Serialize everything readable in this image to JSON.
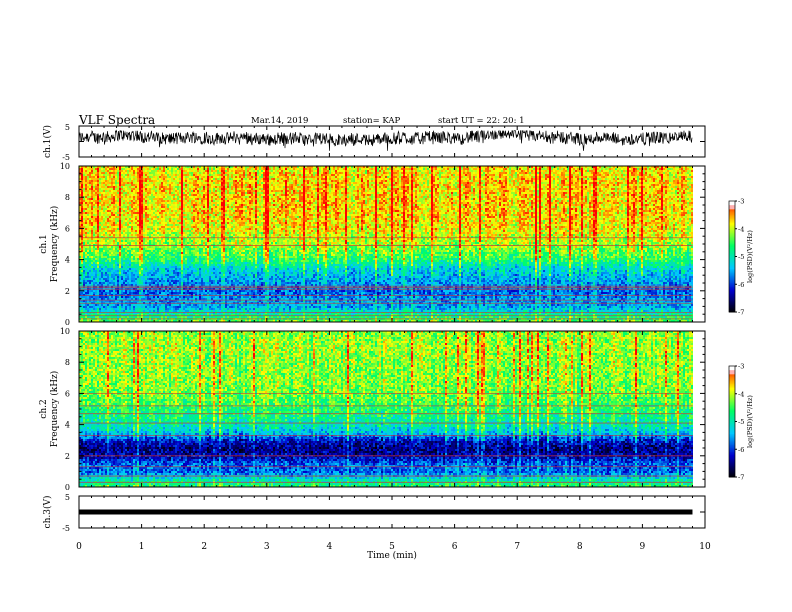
{
  "header": {
    "title": "VLF Spectra",
    "date": "Mar.14, 2019",
    "station": "station= KAP",
    "start": "start  UT =   22: 20: 1"
  },
  "colors": {
    "background": "#ffffff",
    "axis": "#000000",
    "colormap": [
      "#000000",
      "#0000cc",
      "#00c8ff",
      "#00ff64",
      "#ffff00",
      "#ff0000",
      "#ffffff"
    ]
  },
  "chart_data": [
    {
      "type": "line",
      "panel": "ch1-waveform",
      "ylabel": "ch.1(V)",
      "ylim": [
        -5,
        5
      ],
      "yticks": [
        "5",
        "-5"
      ],
      "xlim": [
        0,
        9.8
      ],
      "baseline": 1.0,
      "amplitude": 2.0,
      "noise_floor": -1.5
    },
    {
      "type": "heatmap",
      "panel": "ch1-spectrogram",
      "ylabel_channel": "ch.1",
      "ylabel": "Frequency (kHz)",
      "ylim": [
        0,
        10
      ],
      "yticks": [
        "0",
        "2",
        "4",
        "6",
        "8",
        "10"
      ],
      "xlim": [
        0,
        9.8
      ],
      "colorbar_label": "log(PSD)(V²/Hz)",
      "colorbar_ticks": [
        "-3",
        "-4",
        "-5",
        "-6",
        "-7"
      ],
      "clim": [
        -7,
        -3
      ],
      "profile_khz": [
        0,
        0.5,
        1,
        1.5,
        2,
        2.5,
        3,
        3.5,
        4,
        5,
        6,
        7,
        8,
        9,
        10
      ],
      "profile_log_psd": [
        -4.2,
        -4.8,
        -5.5,
        -5.6,
        -5.8,
        -5.6,
        -5.4,
        -5.2,
        -4.6,
        -4.1,
        -3.8,
        -3.7,
        -3.7,
        -3.7,
        -3.8
      ],
      "tones_khz": [
        0.2,
        0.4,
        0.6,
        1.2,
        1.4,
        1.7,
        2.1,
        2.2,
        2.3,
        4.9,
        5.4
      ],
      "tone_color": "#cc3333"
    },
    {
      "type": "heatmap",
      "panel": "ch2-spectrogram",
      "ylabel_channel": "ch.2",
      "ylabel": "Frequency (kHz)",
      "ylim": [
        0,
        10
      ],
      "yticks": [
        "0",
        "2",
        "4",
        "6",
        "8",
        "10"
      ],
      "xlim": [
        0,
        9.8
      ],
      "colorbar_label": "log(PSD)(V²/Hz)",
      "colorbar_ticks": [
        "-3",
        "-4",
        "-5",
        "-6",
        "-7"
      ],
      "clim": [
        -7,
        -3
      ],
      "profile_khz": [
        0,
        0.5,
        1,
        1.5,
        2,
        2.5,
        3,
        3.5,
        4,
        5,
        6,
        7,
        8,
        9,
        10
      ],
      "profile_log_psd": [
        -4.5,
        -5.0,
        -5.8,
        -5.8,
        -6.3,
        -6.5,
        -6.2,
        -5.4,
        -5.0,
        -4.6,
        -4.3,
        -4.2,
        -4.2,
        -4.1,
        -4.2
      ],
      "tones_khz": [
        0.3,
        0.7,
        1.3,
        2.0,
        3.3,
        4.1,
        4.7,
        5.2,
        6.0
      ],
      "tone_color": "#cc3333"
    },
    {
      "type": "line",
      "panel": "ch3-waveform",
      "ylabel": "ch.3(V)",
      "ylim": [
        -5,
        5
      ],
      "yticks": [
        "5",
        "-5"
      ],
      "xlim": [
        0,
        9.8
      ],
      "baseline": 0.0,
      "amplitude": 0.0,
      "noise_floor": 0.0
    },
    {
      "type": "axis",
      "panel": "time-axis",
      "xlabel": "Time (min)",
      "xlim": [
        0,
        10
      ],
      "xticks": [
        "0",
        "1",
        "2",
        "3",
        "4",
        "5",
        "6",
        "7",
        "8",
        "9",
        "10"
      ]
    }
  ]
}
